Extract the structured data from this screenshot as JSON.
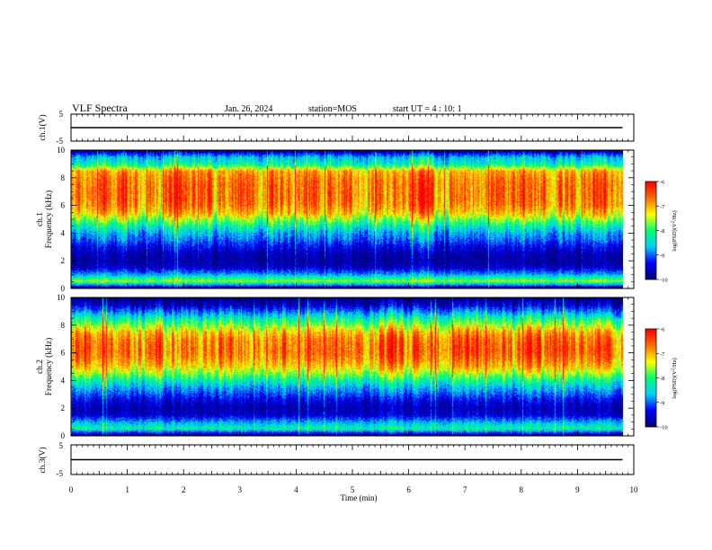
{
  "header": {
    "title": "VLF Spectra",
    "date": "Jan. 26, 2024",
    "station": "station=MOS",
    "start": "start UT =  4 : 10: 1"
  },
  "chart_data": [
    {
      "type": "line",
      "name": "ch1-waveform",
      "ylabel": "ch.1(V)",
      "ylim": [
        -5,
        5
      ],
      "yticks": [
        "5",
        "-5"
      ],
      "xlim": [
        0,
        10
      ],
      "x": [
        0,
        9.8
      ],
      "y": [
        0,
        0
      ]
    },
    {
      "type": "heatmap",
      "name": "ch1-spectrogram",
      "ylabel": "ch.1\nFrequency (kHz)",
      "ylim": [
        0,
        10
      ],
      "yticks": [
        "0",
        "2",
        "4",
        "6",
        "8",
        "10"
      ],
      "xlim": [
        0,
        10
      ],
      "data_xmax": 9.8,
      "colorbar": {
        "range": [
          -10,
          -6
        ],
        "ticks": [
          "-6",
          "-7",
          "-8",
          "-9",
          "-10"
        ],
        "label": "log(PSD)(V²/Hz)"
      },
      "profile_khz": [
        0,
        0.5,
        1,
        1.5,
        2,
        2.5,
        3,
        3.5,
        4,
        4.5,
        5,
        5.5,
        6,
        6.5,
        7,
        7.5,
        8,
        8.5,
        9,
        9.5,
        10
      ],
      "profile_log_psd": [
        -9.9,
        -7.6,
        -8.8,
        -9.6,
        -9.8,
        -9.7,
        -9.4,
        -9.0,
        -8.7,
        -8.2,
        -7.6,
        -7.0,
        -6.7,
        -6.6,
        -6.6,
        -6.6,
        -6.7,
        -6.9,
        -8.2,
        -8.6,
        -9.8
      ]
    },
    {
      "type": "heatmap",
      "name": "ch2-spectrogram",
      "ylabel": "ch.2\nFrequency (kHz)",
      "ylim": [
        0,
        10
      ],
      "yticks": [
        "0",
        "2",
        "4",
        "6",
        "8",
        "10"
      ],
      "xlim": [
        0,
        10
      ],
      "data_xmax": 9.8,
      "colorbar": {
        "range": [
          -10,
          -6
        ],
        "ticks": [
          "-6",
          "-7",
          "-8",
          "-9",
          "-10"
        ],
        "label": "log(PSD)(V²/Hz)"
      },
      "profile_khz": [
        0,
        0.5,
        1,
        1.5,
        2,
        2.5,
        3,
        3.5,
        4,
        4.5,
        5,
        5.5,
        6,
        6.5,
        7,
        7.5,
        8,
        8.5,
        9,
        9.5,
        10
      ],
      "profile_log_psd": [
        -9.9,
        -8.2,
        -8.8,
        -9.6,
        -9.7,
        -9.5,
        -9.1,
        -8.7,
        -8.2,
        -7.6,
        -7.1,
        -6.8,
        -6.6,
        -6.6,
        -6.7,
        -7.0,
        -7.6,
        -8.2,
        -8.9,
        -9.6,
        -10.0
      ]
    },
    {
      "type": "line",
      "name": "ch3-waveform",
      "ylabel": "ch.3(V)",
      "ylim": [
        -5,
        5
      ],
      "yticks": [
        "5",
        "-5"
      ],
      "xlim": [
        0,
        10
      ],
      "x": [
        0,
        9.8
      ],
      "y": [
        0,
        0
      ]
    }
  ],
  "xaxis": {
    "label": "Time (min)",
    "ticks": [
      "0",
      "1",
      "2",
      "3",
      "4",
      "5",
      "6",
      "7",
      "8",
      "9",
      "10"
    ]
  },
  "colors": {
    "colormap": [
      "#00007a",
      "#0000ff",
      "#00d0ff",
      "#00ff70",
      "#ffff00",
      "#ff7000",
      "#ff0000",
      "#ffffff"
    ]
  }
}
